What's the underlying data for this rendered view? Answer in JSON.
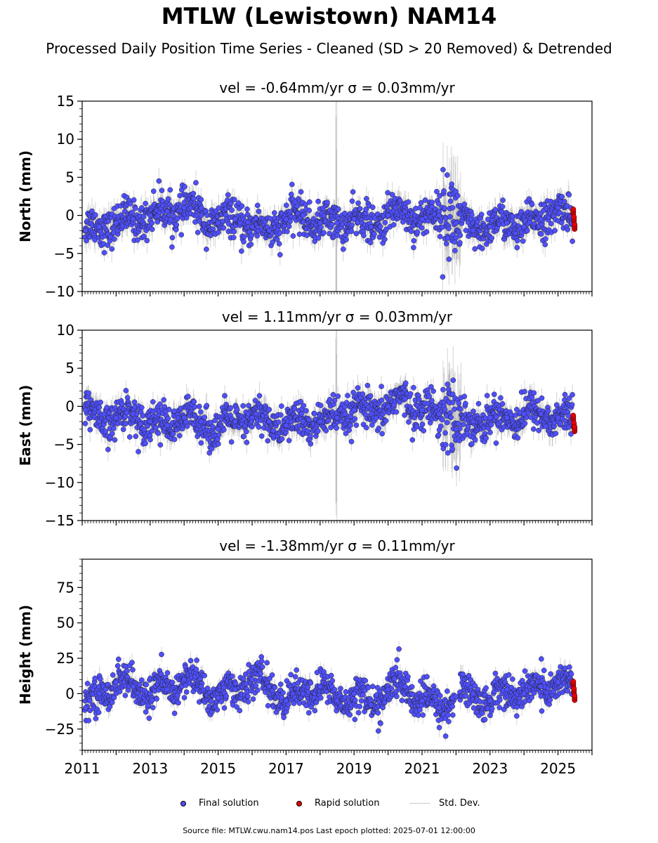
{
  "header": {
    "title": "MTLW (Lewistown) NAM14",
    "subtitle": "Processed Daily Position Time Series - Cleaned (SD > 20 Removed) & Detrended"
  },
  "legend": {
    "final": "Final solution",
    "rapid": "Rapid solution",
    "std": "Std. Dev."
  },
  "footer": {
    "source": "Source file: MTLW.cwu.nam14.pos  Last epoch plotted: 2025-07-01 12:00:00"
  },
  "colors": {
    "final": "#4f4fff",
    "rapid": "#e60000",
    "std": "#888888"
  },
  "chart_data": [
    {
      "type": "scatter",
      "title": "vel = -0.64mm/yr   σ = 0.03mm/yr",
      "ylabel": "North (mm)",
      "xlabel": "",
      "xlim": [
        2011.0,
        2026.0
      ],
      "ylim": [
        -10,
        15
      ],
      "yticks": [
        -10,
        -5,
        0,
        5,
        10,
        15
      ],
      "xticks": [
        2011,
        2013,
        2015,
        2017,
        2019,
        2021,
        2023,
        2025
      ],
      "series": [
        {
          "name": "Final solution",
          "x": [
            2011.1,
            2011.5,
            2012.0,
            2012.5,
            2013.0,
            2013.5,
            2014.0,
            2014.5,
            2015.0,
            2015.5,
            2016.0,
            2016.5,
            2017.0,
            2017.5,
            2018.0,
            2018.5,
            2019.0,
            2019.5,
            2020.0,
            2020.5,
            2021.0,
            2021.5,
            2021.9,
            2022.0,
            2022.5,
            2023.0,
            2023.5,
            2024.0,
            2024.5,
            2025.0,
            2025.4
          ],
          "y": [
            -2.0,
            -1.5,
            -1.0,
            -0.5,
            0.0,
            0.5,
            1.0,
            0.0,
            -1.0,
            -0.5,
            -1.5,
            -2.0,
            -0.5,
            0.0,
            -1.0,
            -1.0,
            -0.5,
            -1.5,
            0.0,
            0.5,
            -0.5,
            0.0,
            1.0,
            -1.0,
            -2.0,
            -1.5,
            -1.0,
            -1.5,
            -0.5,
            1.0,
            -1.0
          ]
        },
        {
          "name": "Rapid solution",
          "x": [
            2025.45,
            2025.47,
            2025.49
          ],
          "y": [
            0.5,
            -0.5,
            -1.5
          ]
        }
      ]
    },
    {
      "type": "scatter",
      "title": "vel = 1.11mm/yr   σ = 0.03mm/yr",
      "ylabel": "East (mm)",
      "xlabel": "",
      "xlim": [
        2011.0,
        2026.0
      ],
      "ylim": [
        -15,
        10
      ],
      "yticks": [
        -15,
        -10,
        -5,
        0,
        5,
        10
      ],
      "xticks": [
        2011,
        2013,
        2015,
        2017,
        2019,
        2021,
        2023,
        2025
      ],
      "series": [
        {
          "name": "Final solution",
          "x": [
            2011.1,
            2011.5,
            2012.0,
            2012.5,
            2013.0,
            2013.5,
            2014.0,
            2014.5,
            2015.0,
            2015.5,
            2016.0,
            2016.5,
            2017.0,
            2017.5,
            2018.0,
            2018.5,
            2019.0,
            2019.5,
            2020.0,
            2020.5,
            2021.0,
            2021.5,
            2021.9,
            2022.0,
            2022.5,
            2023.0,
            2023.5,
            2024.0,
            2024.5,
            2025.0,
            2025.4
          ],
          "y": [
            -0.5,
            -2.0,
            -1.5,
            -1.0,
            -2.0,
            -2.5,
            -1.5,
            -2.0,
            -3.0,
            -2.0,
            -1.5,
            -2.0,
            -2.5,
            -2.0,
            -2.0,
            -1.5,
            -0.5,
            -1.0,
            0.0,
            1.0,
            -0.5,
            -1.0,
            0.5,
            -3.0,
            -2.0,
            -1.5,
            -1.5,
            -1.0,
            -1.0,
            -1.5,
            -2.0
          ]
        },
        {
          "name": "Rapid solution",
          "x": [
            2025.45,
            2025.47,
            2025.49
          ],
          "y": [
            -1.5,
            -2.5,
            -3.0
          ]
        }
      ]
    },
    {
      "type": "scatter",
      "title": "vel = -1.38mm/yr   σ = 0.11mm/yr",
      "ylabel": "Height (mm)",
      "xlabel": "",
      "xlim": [
        2011.0,
        2026.0
      ],
      "ylim": [
        -40,
        95
      ],
      "yticks": [
        -25,
        0,
        25,
        50,
        75
      ],
      "xticks": [
        2011,
        2013,
        2015,
        2017,
        2019,
        2021,
        2023,
        2025
      ],
      "series": [
        {
          "name": "Final solution",
          "x": [
            2011.1,
            2011.5,
            2012.0,
            2012.5,
            2013.0,
            2013.5,
            2014.0,
            2014.5,
            2015.0,
            2015.5,
            2016.0,
            2016.5,
            2017.0,
            2017.5,
            2018.0,
            2018.5,
            2019.0,
            2019.5,
            2020.0,
            2020.5,
            2021.0,
            2021.5,
            2021.9,
            2022.0,
            2022.5,
            2023.0,
            2023.5,
            2024.0,
            2024.5,
            2025.0,
            2025.4
          ],
          "y": [
            -10.0,
            0.0,
            8.0,
            5.0,
            0.0,
            3.0,
            10.0,
            5.0,
            -3.0,
            3.0,
            10.0,
            5.0,
            -5.0,
            0.0,
            5.0,
            -5.0,
            0.0,
            -8.0,
            3.0,
            5.0,
            -5.0,
            -10.0,
            -3.0,
            -2.0,
            0.0,
            -5.0,
            3.0,
            0.0,
            5.0,
            8.0,
            5.0
          ]
        },
        {
          "name": "Rapid solution",
          "x": [
            2025.45,
            2025.47,
            2025.49
          ],
          "y": [
            7.0,
            2.0,
            -3.0
          ]
        }
      ]
    }
  ]
}
